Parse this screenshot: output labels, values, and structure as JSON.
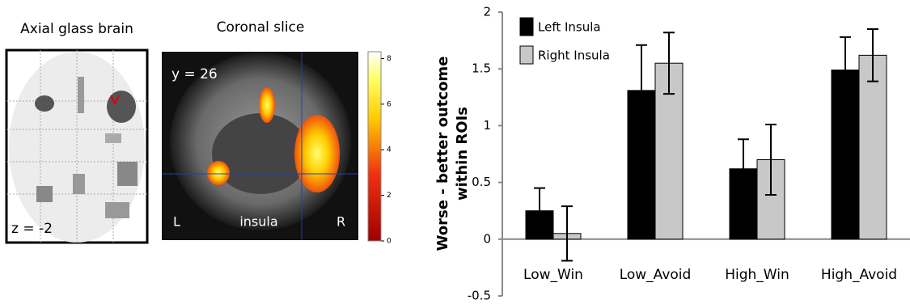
{
  "panels": {
    "axial_title": "Axial glass brain",
    "axial_label": "z = -2",
    "coronal_title": "Coronal slice",
    "coronal_label": "y = 26",
    "left_mark": "L",
    "right_mark": "R",
    "region_label": "insula"
  },
  "colorbar": {
    "lim": [
      0,
      8.3
    ],
    "ticks": [
      0,
      2,
      4,
      6,
      8
    ]
  },
  "chart_data": {
    "type": "bar",
    "ylabel": [
      "Worse - better outcome",
      "within ROIs"
    ],
    "categories": [
      "Low_Win",
      "Low_Avoid",
      "High_Win",
      "High_Avoid"
    ],
    "series": [
      {
        "name": "Left Insula",
        "color": "#000000",
        "values": [
          0.25,
          1.31,
          0.62,
          1.49
        ],
        "errors": [
          0.2,
          0.4,
          0.26,
          0.29
        ]
      },
      {
        "name": "Right Insula",
        "color": "#c8c8c8",
        "values": [
          0.05,
          1.55,
          0.7,
          1.62
        ],
        "errors": [
          0.24,
          0.27,
          0.31,
          0.23
        ]
      }
    ],
    "ylim": [
      -0.5,
      2
    ],
    "yticks": [
      -0.5,
      0,
      0.5,
      1,
      1.5,
      2
    ],
    "legend": "upper-left"
  }
}
